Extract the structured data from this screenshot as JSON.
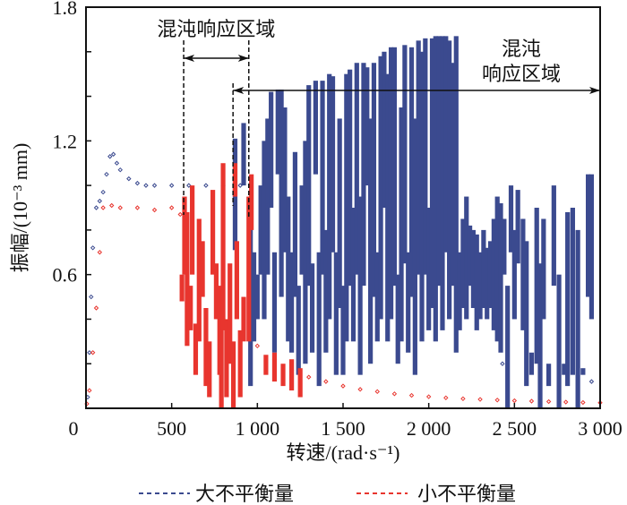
{
  "chart_data": {
    "type": "scatter",
    "xlabel": "转速/(rad·s⁻¹)",
    "ylabel": "振幅/(10⁻³ mm)",
    "xlim": [
      0,
      3000
    ],
    "ylim": [
      0,
      1.8
    ],
    "x_ticks": [
      0,
      500,
      1000,
      1500,
      2000,
      2500,
      3000
    ],
    "x_tick_labels": [
      "0",
      "500",
      "1 000",
      "1 500",
      "2 000",
      "2 500",
      "3 000"
    ],
    "y_ticks": [
      0.6,
      1.2,
      1.8
    ],
    "y_tick_labels": [
      "0.6",
      "1.2",
      "1.8"
    ],
    "grid": false,
    "legend_placement": "bottom",
    "annotations": [
      {
        "text": "混沌响应区域",
        "x_range": [
          570,
          950
        ]
      },
      {
        "text_lines": [
          "混沌",
          "响应区域"
        ],
        "x_range": [
          858,
          3000
        ]
      }
    ],
    "series": [
      {
        "name": "大不平衡量",
        "color": "#3b4a8f",
        "periodic_points": [
          [
            10,
            0.05
          ],
          [
            20,
            0.25
          ],
          [
            30,
            0.5
          ],
          [
            40,
            0.72
          ],
          [
            60,
            0.9
          ],
          [
            80,
            0.93
          ],
          [
            100,
            0.97
          ],
          [
            120,
            1.05
          ],
          [
            140,
            1.13
          ],
          [
            160,
            1.14
          ],
          [
            180,
            1.1
          ],
          [
            200,
            1.07
          ],
          [
            250,
            1.03
          ],
          [
            300,
            1.01
          ],
          [
            350,
            1.0
          ],
          [
            400,
            1.0
          ],
          [
            500,
            1.0
          ],
          [
            600,
            1.0
          ],
          [
            700,
            1.0
          ],
          [
            800,
            1.0
          ],
          [
            900,
            1.0
          ],
          [
            2430,
            0.2
          ],
          [
            2950,
            0.12
          ]
        ],
        "range_segments": [
          [
            870,
            0.71,
            1.21
          ],
          [
            920,
            1.0,
            1.28
          ],
          [
            960,
            0.1,
            0.95
          ],
          [
            980,
            0.3,
            0.7
          ],
          [
            1000,
            0.4,
            0.6
          ],
          [
            1020,
            0.6,
            1.0
          ],
          [
            1040,
            0.4,
            1.2
          ],
          [
            1060,
            0.6,
            1.3
          ],
          [
            1080,
            0.9,
            1.42
          ],
          [
            1100,
            0.25,
            0.7
          ],
          [
            1120,
            1.05,
            1.43
          ],
          [
            1140,
            0.5,
            1.43
          ],
          [
            1160,
            0.7,
            1.35
          ],
          [
            1180,
            0.3,
            0.95
          ],
          [
            1200,
            0.25,
            0.7
          ],
          [
            1220,
            0.5,
            1.15
          ],
          [
            1240,
            0.15,
            0.55
          ],
          [
            1260,
            0.6,
            1.0
          ],
          [
            1280,
            0.2,
            1.2
          ],
          [
            1300,
            0.55,
            1.45
          ],
          [
            1320,
            0.25,
            0.65
          ],
          [
            1340,
            1.05,
            1.47
          ],
          [
            1360,
            0.1,
            0.7
          ],
          [
            1380,
            0.6,
            1.47
          ],
          [
            1400,
            0.25,
            0.8
          ],
          [
            1420,
            0.4,
            1.5
          ],
          [
            1440,
            0.7,
            1.49
          ],
          [
            1460,
            0.15,
            0.7
          ],
          [
            1480,
            0.45,
            1.3
          ],
          [
            1500,
            0.15,
            0.55
          ],
          [
            1520,
            0.3,
            1.5
          ],
          [
            1540,
            0.55,
            1.52
          ],
          [
            1560,
            0.3,
            0.9
          ],
          [
            1580,
            0.6,
            1.55
          ],
          [
            1600,
            0.15,
            0.95
          ],
          [
            1620,
            0.55,
            1.55
          ],
          [
            1640,
            1.0,
            1.53
          ],
          [
            1660,
            0.2,
            1.3
          ],
          [
            1680,
            0.5,
            1.55
          ],
          [
            1700,
            0.3,
            0.7
          ],
          [
            1720,
            0.4,
            1.58
          ],
          [
            1740,
            0.9,
            1.6
          ],
          [
            1760,
            0.3,
            1.5
          ],
          [
            1780,
            0.4,
            1.62
          ],
          [
            1800,
            0.55,
            1.62
          ],
          [
            1820,
            0.2,
            0.6
          ],
          [
            1840,
            0.3,
            1.35
          ],
          [
            1860,
            0.65,
            1.63
          ],
          [
            1880,
            0.25,
            0.7
          ],
          [
            1900,
            0.5,
            1.62
          ],
          [
            1920,
            0.15,
            1.3
          ],
          [
            1940,
            0.6,
            1.65
          ],
          [
            1960,
            0.3,
            1.6
          ],
          [
            1980,
            0.6,
            1.66
          ],
          [
            2000,
            0.35,
            0.9
          ],
          [
            2020,
            0.45,
            1.66
          ],
          [
            2040,
            0.3,
            1.67
          ],
          [
            2060,
            0.55,
            1.67
          ],
          [
            2080,
            0.35,
            1.67
          ],
          [
            2100,
            0.7,
            1.67
          ],
          [
            2120,
            0.4,
            1.65
          ],
          [
            2140,
            0.55,
            1.55
          ],
          [
            2160,
            0.25,
            1.67
          ],
          [
            2180,
            0.35,
            0.7
          ],
          [
            2200,
            0.45,
            0.85
          ],
          [
            2220,
            0.4,
            0.95
          ],
          [
            2240,
            0.55,
            0.82
          ],
          [
            2260,
            0.45,
            0.8
          ],
          [
            2280,
            0.35,
            0.78
          ],
          [
            2300,
            0.4,
            0.7
          ],
          [
            2320,
            0.45,
            0.8
          ],
          [
            2340,
            0.4,
            0.72
          ],
          [
            2360,
            0.45,
            0.75
          ],
          [
            2380,
            0.35,
            0.85
          ],
          [
            2400,
            0.3,
            0.95
          ],
          [
            2420,
            0.25,
            0.92
          ],
          [
            2440,
            0.6,
            0.85
          ],
          [
            2460,
            0.0,
            0.55
          ],
          [
            2480,
            0.7,
            1.0
          ],
          [
            2500,
            0.4,
            0.8
          ],
          [
            2520,
            0.65,
            0.98
          ],
          [
            2550,
            0.35,
            0.85
          ],
          [
            2570,
            0.1,
            0.75
          ],
          [
            2600,
            0.15,
            0.25
          ],
          [
            2630,
            0.2,
            0.9
          ],
          [
            2650,
            0.0,
            0.65
          ],
          [
            2670,
            0.4,
            0.85
          ],
          [
            2700,
            0.1,
            0.2
          ],
          [
            2730,
            0.55,
            1.0
          ],
          [
            2760,
            0.0,
            0.6
          ],
          [
            2790,
            0.15,
            0.2
          ],
          [
            2810,
            0.1,
            0.88
          ],
          [
            2840,
            0.15,
            0.9
          ],
          [
            2870,
            0.0,
            0.8
          ],
          [
            2900,
            0.15,
            0.18
          ],
          [
            2930,
            0.5,
            1.05
          ],
          [
            2950,
            0.4,
            1.05
          ]
        ]
      },
      {
        "name": "小不平衡量",
        "color": "#e8352e",
        "periodic_points": [
          [
            5,
            0.02
          ],
          [
            20,
            0.08
          ],
          [
            40,
            0.25
          ],
          [
            60,
            0.45
          ],
          [
            80,
            0.7
          ],
          [
            100,
            0.9
          ],
          [
            150,
            0.91
          ],
          [
            200,
            0.9
          ],
          [
            300,
            0.9
          ],
          [
            400,
            0.89
          ],
          [
            500,
            0.9
          ],
          [
            550,
            0.87
          ],
          [
            1000,
            0.28
          ],
          [
            1100,
            0.22
          ],
          [
            1200,
            0.17
          ],
          [
            1300,
            0.14
          ],
          [
            1400,
            0.12
          ],
          [
            1500,
            0.1
          ],
          [
            1600,
            0.085
          ],
          [
            1700,
            0.075
          ],
          [
            1800,
            0.065
          ],
          [
            1900,
            0.058
          ],
          [
            2000,
            0.052
          ],
          [
            2100,
            0.047
          ],
          [
            2200,
            0.043
          ],
          [
            2300,
            0.04
          ],
          [
            2400,
            0.037
          ],
          [
            2500,
            0.034
          ],
          [
            2600,
            0.032
          ],
          [
            2700,
            0.03
          ],
          [
            2800,
            0.028
          ],
          [
            2900,
            0.026
          ],
          [
            3000,
            0.025
          ]
        ],
        "range_segments": [
          [
            560,
            0.48,
            0.6
          ],
          [
            575,
            0.6,
            0.95
          ],
          [
            590,
            0.28,
            0.88
          ],
          [
            610,
            0.35,
            0.55
          ],
          [
            620,
            0.6,
            1.0
          ],
          [
            640,
            0.15,
            0.38
          ],
          [
            660,
            0.3,
            0.85
          ],
          [
            680,
            0.5,
            0.75
          ],
          [
            700,
            0.1,
            0.45
          ],
          [
            720,
            0.05,
            0.3
          ],
          [
            740,
            0.6,
            0.98
          ],
          [
            760,
            0.4,
            0.65
          ],
          [
            780,
            0.15,
            0.55
          ],
          [
            790,
            0.0,
            0.5
          ],
          [
            800,
            0.35,
            1.1
          ],
          [
            820,
            0.05,
            0.4
          ],
          [
            840,
            0.2,
            0.65
          ],
          [
            860,
            0.0,
            0.3
          ],
          [
            870,
            0.95,
            1.1
          ],
          [
            880,
            0.4,
            0.75
          ],
          [
            900,
            0.05,
            0.35
          ],
          [
            920,
            0.3,
            0.5
          ],
          [
            950,
            0.3,
            0.95
          ],
          [
            965,
            0.8,
            1.05
          ],
          [
            1050,
            0.15,
            0.24
          ],
          [
            1100,
            0.12,
            0.25
          ],
          [
            1150,
            0.1,
            0.2
          ],
          [
            1200,
            0.08,
            0.22
          ],
          [
            1250,
            0.05,
            0.18
          ]
        ]
      }
    ]
  }
}
